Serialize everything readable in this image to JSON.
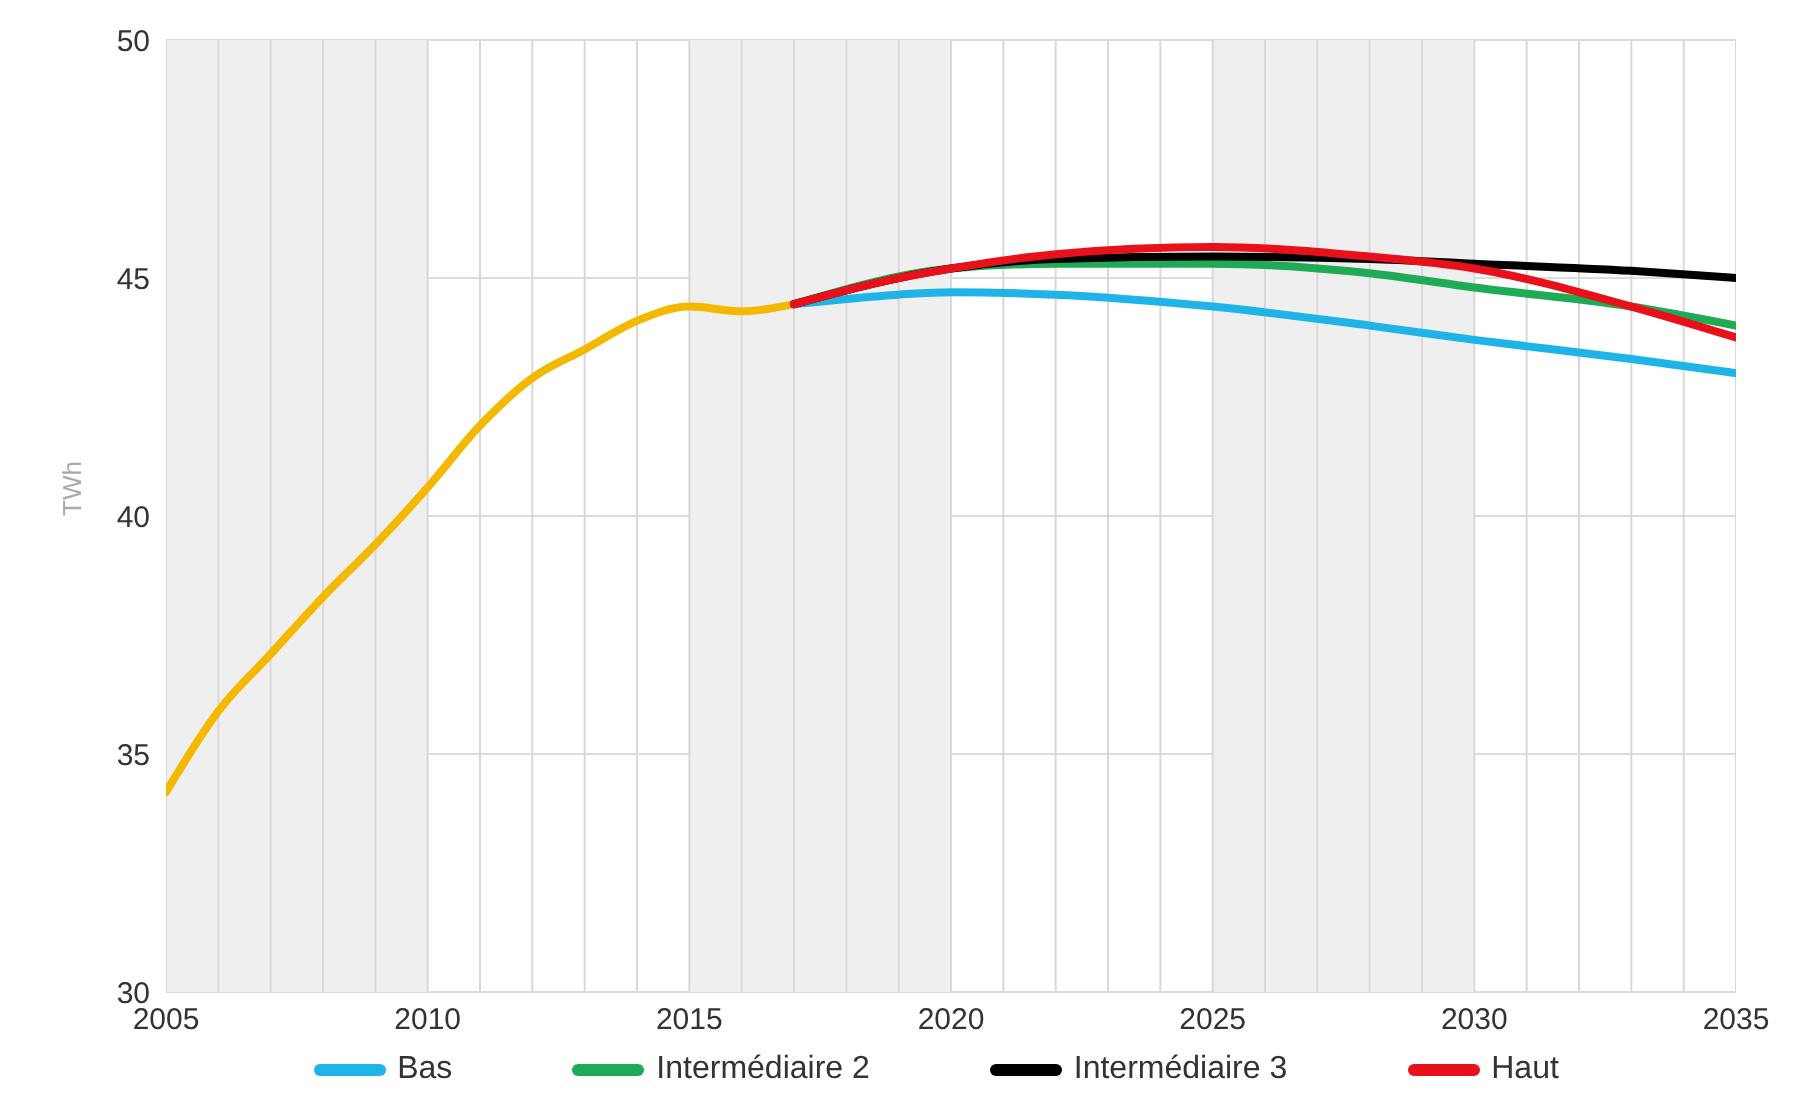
{
  "chart_data": {
    "type": "line",
    "ylabel": "TWh",
    "xlim": [
      2005,
      2035
    ],
    "ylim": [
      30,
      50
    ],
    "xticks": [
      2005,
      {
        "value": 2006,
        "label": null
      },
      {
        "value": 2007,
        "label": null
      },
      {
        "value": 2008,
        "label": null
      },
      {
        "value": 2009,
        "label": null
      },
      2010,
      {
        "value": 2011,
        "label": null
      },
      {
        "value": 2012,
        "label": null
      },
      {
        "value": 2013,
        "label": null
      },
      {
        "value": 2014,
        "label": null
      },
      2015,
      {
        "value": 2016,
        "label": null
      },
      {
        "value": 2017,
        "label": null
      },
      {
        "value": 2018,
        "label": null
      },
      {
        "value": 2019,
        "label": null
      },
      2020,
      {
        "value": 2021,
        "label": null
      },
      {
        "value": 2022,
        "label": null
      },
      {
        "value": 2023,
        "label": null
      },
      {
        "value": 2024,
        "label": null
      },
      2025,
      {
        "value": 2026,
        "label": null
      },
      {
        "value": 2027,
        "label": null
      },
      {
        "value": 2028,
        "label": null
      },
      {
        "value": 2029,
        "label": null
      },
      2030,
      {
        "value": 2031,
        "label": null
      },
      {
        "value": 2032,
        "label": null
      },
      {
        "value": 2033,
        "label": null
      },
      {
        "value": 2034,
        "label": null
      },
      2035
    ],
    "yticks": [
      30,
      35,
      40,
      45,
      50
    ],
    "grid": true,
    "legend": "bottom",
    "marker": "none",
    "line_style": "solid",
    "bands": [
      {
        "axis": "x",
        "from": 2005,
        "to": 2010,
        "color": "#efefef"
      },
      {
        "axis": "x",
        "from": 2015,
        "to": 2020,
        "color": "#efefef"
      },
      {
        "axis": "x",
        "from": 2025,
        "to": 2030,
        "color": "#efefef"
      }
    ],
    "series": [
      {
        "color": "#f5b800",
        "x": [
          2005,
          2006,
          2007,
          2008,
          2009,
          2010,
          2011,
          2012,
          2013,
          2014,
          2015,
          2016,
          2017
        ],
        "values": [
          34.2,
          35.9,
          37.1,
          38.3,
          39.4,
          40.6,
          41.9,
          42.9,
          43.5,
          44.1,
          44.4,
          44.3,
          44.45
        ]
      },
      {
        "name": "Bas",
        "color": "#1fb4e8",
        "x": [
          2017,
          2019,
          2020,
          2022,
          2025,
          2028,
          2030,
          2033,
          2035
        ],
        "values": [
          44.45,
          44.65,
          44.7,
          44.65,
          44.4,
          44.0,
          43.7,
          43.3,
          43.0
        ]
      },
      {
        "name": "Intermédiaire 2",
        "color": "#1faa55",
        "x": [
          2017,
          2020,
          2022,
          2025,
          2028,
          2030,
          2033,
          2035
        ],
        "values": [
          44.45,
          45.2,
          45.3,
          45.3,
          45.1,
          44.8,
          44.4,
          44.0
        ]
      },
      {
        "name": "Intermédiaire 3",
        "color": "#000000",
        "x": [
          2017,
          2020,
          2022,
          2025,
          2028,
          2030,
          2033,
          2035
        ],
        "values": [
          44.45,
          45.2,
          45.4,
          45.45,
          45.4,
          45.3,
          45.15,
          45.0
        ]
      },
      {
        "name": "Haut",
        "color": "#e8101a",
        "x": [
          2017,
          2019,
          2020,
          2022,
          2025,
          2028,
          2030,
          2033,
          2035
        ],
        "values": [
          44.45,
          45.0,
          45.2,
          45.5,
          45.65,
          45.45,
          45.2,
          44.4,
          43.75
        ]
      }
    ]
  }
}
